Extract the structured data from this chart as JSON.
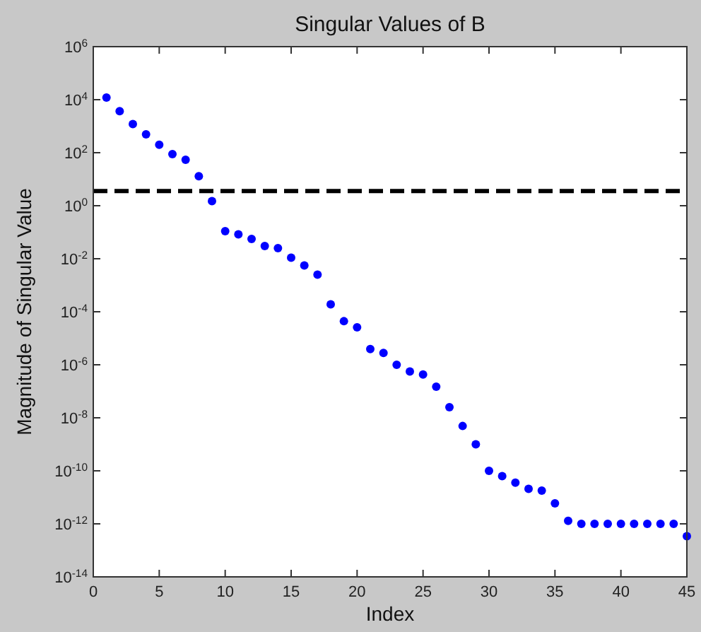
{
  "chart_data": {
    "type": "scatter",
    "title": "Singular Values of B",
    "xlabel": "Index",
    "ylabel": "Magnitude of Singular Value",
    "log": "y",
    "marker": "circle",
    "grid": false,
    "xlim": [
      0,
      45
    ],
    "xticks": [
      0,
      5,
      10,
      15,
      20,
      25,
      30,
      35,
      40,
      45
    ],
    "ylim": [
      1e-14,
      1000000.0
    ],
    "yticks": [
      {
        "value": 1e-14,
        "label": "10$^{-14}$"
      },
      {
        "value": 1e-12,
        "label": "10$^{-12}$"
      },
      {
        "value": 1e-10,
        "label": "10$^{-10}$"
      },
      {
        "value": 1e-08,
        "label": "10$^{-8}$"
      },
      {
        "value": 1e-06,
        "label": "10$^{-6}$"
      },
      {
        "value": 0.0001,
        "label": "10$^{-4}$"
      },
      {
        "value": 0.01,
        "label": "10$^{-2}$"
      },
      {
        "value": 1,
        "label": "10$^{0}$"
      },
      {
        "value": 100,
        "label": "10$^{2}$"
      },
      {
        "value": 10000.0,
        "label": "10$^{4}$"
      },
      {
        "value": 1000000.0,
        "label": "10$^{6}$"
      }
    ],
    "x": [
      1,
      2,
      3,
      4,
      5,
      6,
      7,
      8,
      9,
      10,
      11,
      12,
      13,
      14,
      15,
      16,
      17,
      18,
      19,
      20,
      21,
      22,
      23,
      24,
      25,
      26,
      27,
      28,
      29,
      30,
      31,
      32,
      33,
      34,
      35,
      36,
      37,
      38,
      39,
      40,
      41,
      42,
      43,
      44,
      45
    ],
    "series": [
      {
        "color": "#0000ff",
        "values": [
          12000,
          3700,
          1200,
          490,
          200,
          89,
          54,
          13,
          1.5,
          0.11,
          0.083,
          0.056,
          0.03,
          0.025,
          0.011,
          0.0056,
          0.0025,
          0.00019,
          4.4e-05,
          2.6e-05,
          3.9e-06,
          2.8e-06,
          1e-06,
          5.6e-07,
          4.3e-07,
          1.5e-07,
          2.5e-08,
          4.9e-09,
          1e-09,
          1e-10,
          6.3e-11,
          3.6e-11,
          2.1e-11,
          1.8e-11,
          5.9e-12,
          1.3e-12,
          1e-12,
          1e-12,
          1e-12,
          1e-12,
          1e-12,
          1e-12,
          1e-12,
          1e-12,
          3.4e-13
        ]
      }
    ],
    "ref_lines": [
      {
        "axis": "y",
        "value": 3.6,
        "color": "#000000",
        "line_style": "dashed"
      }
    ]
  }
}
